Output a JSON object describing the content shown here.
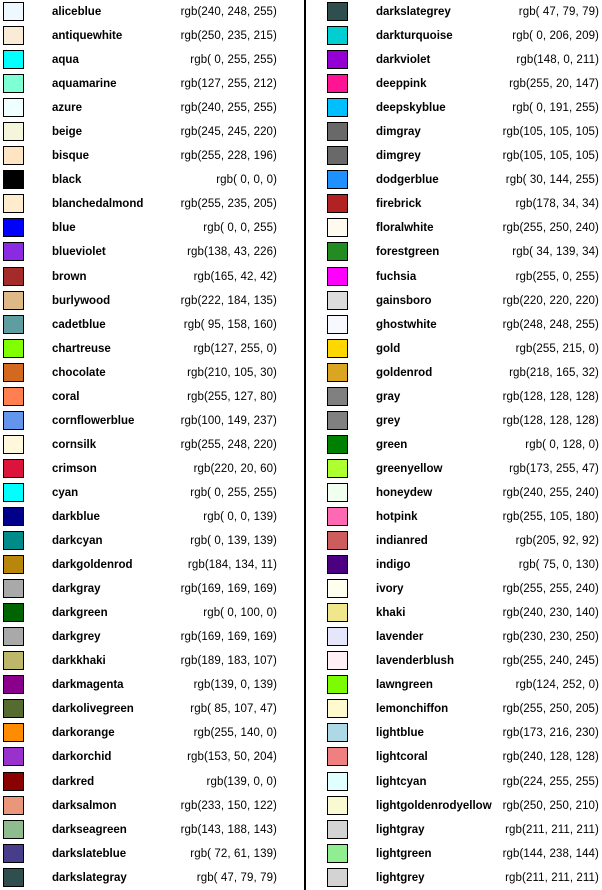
{
  "chart_data": {
    "type": "table",
    "title": "",
    "description": "Two-column legend of CSS named colors with swatch, name, and rgb value",
    "background": "#ffffff",
    "text_color": "#000000",
    "swatch_border_color": "#000000",
    "divider_color": "#000000",
    "rows_per_column": 37,
    "columns": [
      {
        "rows": [
          {
            "name": "aliceblue",
            "r": 240,
            "g": 248,
            "b": 255,
            "label": "rgb(240, 248, 255)"
          },
          {
            "name": "antiquewhite",
            "r": 250,
            "g": 235,
            "b": 215,
            "label": "rgb(250, 235, 215)"
          },
          {
            "name": "aqua",
            "r": 0,
            "g": 255,
            "b": 255,
            "label": "rgb( 0, 255, 255)"
          },
          {
            "name": "aquamarine",
            "r": 127,
            "g": 255,
            "b": 212,
            "label": "rgb(127, 255, 212)"
          },
          {
            "name": "azure",
            "r": 240,
            "g": 255,
            "b": 255,
            "label": "rgb(240, 255, 255)"
          },
          {
            "name": "beige",
            "r": 245,
            "g": 245,
            "b": 220,
            "label": "rgb(245, 245, 220)"
          },
          {
            "name": "bisque",
            "r": 255,
            "g": 228,
            "b": 196,
            "label": "rgb(255, 228, 196)"
          },
          {
            "name": "black",
            "r": 0,
            "g": 0,
            "b": 0,
            "label": "rgb( 0, 0, 0)"
          },
          {
            "name": "blanchedalmond",
            "r": 255,
            "g": 235,
            "b": 205,
            "label": "rgb(255, 235, 205)"
          },
          {
            "name": "blue",
            "r": 0,
            "g": 0,
            "b": 255,
            "label": "rgb( 0, 0, 255)"
          },
          {
            "name": "blueviolet",
            "r": 138,
            "g": 43,
            "b": 226,
            "label": "rgb(138, 43, 226)"
          },
          {
            "name": "brown",
            "r": 165,
            "g": 42,
            "b": 42,
            "label": "rgb(165, 42, 42)"
          },
          {
            "name": "burlywood",
            "r": 222,
            "g": 184,
            "b": 135,
            "label": "rgb(222, 184, 135)"
          },
          {
            "name": "cadetblue",
            "r": 95,
            "g": 158,
            "b": 160,
            "label": "rgb( 95, 158, 160)"
          },
          {
            "name": "chartreuse",
            "r": 127,
            "g": 255,
            "b": 0,
            "label": "rgb(127, 255, 0)"
          },
          {
            "name": "chocolate",
            "r": 210,
            "g": 105,
            "b": 30,
            "label": "rgb(210, 105, 30)"
          },
          {
            "name": "coral",
            "r": 255,
            "g": 127,
            "b": 80,
            "label": "rgb(255, 127, 80)"
          },
          {
            "name": "cornflowerblue",
            "r": 100,
            "g": 149,
            "b": 237,
            "label": "rgb(100, 149, 237)"
          },
          {
            "name": "cornsilk",
            "r": 255,
            "g": 248,
            "b": 220,
            "label": "rgb(255, 248, 220)"
          },
          {
            "name": "crimson",
            "r": 220,
            "g": 20,
            "b": 60,
            "label": "rgb(220, 20, 60)"
          },
          {
            "name": "cyan",
            "r": 0,
            "g": 255,
            "b": 255,
            "label": "rgb( 0, 255, 255)"
          },
          {
            "name": "darkblue",
            "r": 0,
            "g": 0,
            "b": 139,
            "label": "rgb( 0, 0, 139)"
          },
          {
            "name": "darkcyan",
            "r": 0,
            "g": 139,
            "b": 139,
            "label": "rgb( 0, 139, 139)"
          },
          {
            "name": "darkgoldenrod",
            "r": 184,
            "g": 134,
            "b": 11,
            "label": "rgb(184, 134, 11)"
          },
          {
            "name": "darkgray",
            "r": 169,
            "g": 169,
            "b": 169,
            "label": "rgb(169, 169, 169)"
          },
          {
            "name": "darkgreen",
            "r": 0,
            "g": 100,
            "b": 0,
            "label": "rgb( 0, 100, 0)"
          },
          {
            "name": "darkgrey",
            "r": 169,
            "g": 169,
            "b": 169,
            "label": "rgb(169, 169, 169)"
          },
          {
            "name": "darkkhaki",
            "r": 189,
            "g": 183,
            "b": 107,
            "label": "rgb(189, 183, 107)"
          },
          {
            "name": "darkmagenta",
            "r": 139,
            "g": 0,
            "b": 139,
            "label": "rgb(139, 0, 139)"
          },
          {
            "name": "darkolivegreen",
            "r": 85,
            "g": 107,
            "b": 47,
            "label": "rgb( 85, 107, 47)"
          },
          {
            "name": "darkorange",
            "r": 255,
            "g": 140,
            "b": 0,
            "label": "rgb(255, 140, 0)"
          },
          {
            "name": "darkorchid",
            "r": 153,
            "g": 50,
            "b": 204,
            "label": "rgb(153, 50, 204)"
          },
          {
            "name": "darkred",
            "r": 139,
            "g": 0,
            "b": 0,
            "label": "rgb(139, 0, 0)"
          },
          {
            "name": "darksalmon",
            "r": 233,
            "g": 150,
            "b": 122,
            "label": "rgb(233, 150, 122)"
          },
          {
            "name": "darkseagreen",
            "r": 143,
            "g": 188,
            "b": 143,
            "label": "rgb(143, 188, 143)"
          },
          {
            "name": "darkslateblue",
            "r": 72,
            "g": 61,
            "b": 139,
            "label": "rgb( 72, 61, 139)"
          },
          {
            "name": "darkslategray",
            "r": 47,
            "g": 79,
            "b": 79,
            "label": "rgb( 47, 79, 79)"
          }
        ]
      },
      {
        "rows": [
          {
            "name": "darkslategrey",
            "r": 47,
            "g": 79,
            "b": 79,
            "label": "rgb( 47, 79, 79)"
          },
          {
            "name": "darkturquoise",
            "r": 0,
            "g": 206,
            "b": 209,
            "label": "rgb( 0, 206, 209)"
          },
          {
            "name": "darkviolet",
            "r": 148,
            "g": 0,
            "b": 211,
            "label": "rgb(148, 0, 211)"
          },
          {
            "name": "deeppink",
            "r": 255,
            "g": 20,
            "b": 147,
            "label": "rgb(255, 20, 147)"
          },
          {
            "name": "deepskyblue",
            "r": 0,
            "g": 191,
            "b": 255,
            "label": "rgb( 0, 191, 255)"
          },
          {
            "name": "dimgray",
            "r": 105,
            "g": 105,
            "b": 105,
            "label": "rgb(105, 105, 105)"
          },
          {
            "name": "dimgrey",
            "r": 105,
            "g": 105,
            "b": 105,
            "label": "rgb(105, 105, 105)"
          },
          {
            "name": "dodgerblue",
            "r": 30,
            "g": 144,
            "b": 255,
            "label": "rgb( 30, 144, 255)"
          },
          {
            "name": "firebrick",
            "r": 178,
            "g": 34,
            "b": 34,
            "label": "rgb(178, 34, 34)"
          },
          {
            "name": "floralwhite",
            "r": 255,
            "g": 250,
            "b": 240,
            "label": "rgb(255, 250, 240)"
          },
          {
            "name": "forestgreen",
            "r": 34,
            "g": 139,
            "b": 34,
            "label": "rgb( 34, 139, 34)"
          },
          {
            "name": "fuchsia",
            "r": 255,
            "g": 0,
            "b": 255,
            "label": "rgb(255, 0, 255)"
          },
          {
            "name": "gainsboro",
            "r": 220,
            "g": 220,
            "b": 220,
            "label": "rgb(220, 220, 220)"
          },
          {
            "name": "ghostwhite",
            "r": 248,
            "g": 248,
            "b": 255,
            "label": "rgb(248, 248, 255)"
          },
          {
            "name": "gold",
            "r": 255,
            "g": 215,
            "b": 0,
            "label": "rgb(255, 215, 0)"
          },
          {
            "name": "goldenrod",
            "r": 218,
            "g": 165,
            "b": 32,
            "label": "rgb(218, 165, 32)"
          },
          {
            "name": "gray",
            "r": 128,
            "g": 128,
            "b": 128,
            "label": "rgb(128, 128, 128)"
          },
          {
            "name": "grey",
            "r": 128,
            "g": 128,
            "b": 128,
            "label": "rgb(128, 128, 128)"
          },
          {
            "name": "green",
            "r": 0,
            "g": 128,
            "b": 0,
            "label": "rgb( 0, 128, 0)"
          },
          {
            "name": "greenyellow",
            "r": 173,
            "g": 255,
            "b": 47,
            "label": "rgb(173, 255, 47)"
          },
          {
            "name": "honeydew",
            "r": 240,
            "g": 255,
            "b": 240,
            "label": "rgb(240, 255, 240)"
          },
          {
            "name": "hotpink",
            "r": 255,
            "g": 105,
            "b": 180,
            "label": "rgb(255, 105, 180)"
          },
          {
            "name": "indianred",
            "r": 205,
            "g": 92,
            "b": 92,
            "label": "rgb(205, 92, 92)"
          },
          {
            "name": "indigo",
            "r": 75,
            "g": 0,
            "b": 130,
            "label": "rgb( 75, 0, 130)"
          },
          {
            "name": "ivory",
            "r": 255,
            "g": 255,
            "b": 240,
            "label": "rgb(255, 255, 240)"
          },
          {
            "name": "khaki",
            "r": 240,
            "g": 230,
            "b": 140,
            "label": "rgb(240, 230, 140)"
          },
          {
            "name": "lavender",
            "r": 230,
            "g": 230,
            "b": 250,
            "label": "rgb(230, 230, 250)"
          },
          {
            "name": "lavenderblush",
            "r": 255,
            "g": 240,
            "b": 245,
            "label": "rgb(255, 240, 245)"
          },
          {
            "name": "lawngreen",
            "r": 124,
            "g": 252,
            "b": 0,
            "label": "rgb(124, 252, 0)"
          },
          {
            "name": "lemonchiffon",
            "r": 255,
            "g": 250,
            "b": 205,
            "label": "rgb(255, 250, 205)"
          },
          {
            "name": "lightblue",
            "r": 173,
            "g": 216,
            "b": 230,
            "label": "rgb(173, 216, 230)"
          },
          {
            "name": "lightcoral",
            "r": 240,
            "g": 128,
            "b": 128,
            "label": "rgb(240, 128, 128)"
          },
          {
            "name": "lightcyan",
            "r": 224,
            "g": 255,
            "b": 255,
            "label": "rgb(224, 255, 255)"
          },
          {
            "name": "lightgoldenrodyellow",
            "r": 250,
            "g": 250,
            "b": 210,
            "label": "rgb(250, 250, 210)"
          },
          {
            "name": "lightgray",
            "r": 211,
            "g": 211,
            "b": 211,
            "label": "rgb(211, 211, 211)"
          },
          {
            "name": "lightgreen",
            "r": 144,
            "g": 238,
            "b": 144,
            "label": "rgb(144, 238, 144)"
          },
          {
            "name": "lightgrey",
            "r": 211,
            "g": 211,
            "b": 211,
            "label": "rgb(211, 211, 211)"
          }
        ]
      }
    ]
  }
}
